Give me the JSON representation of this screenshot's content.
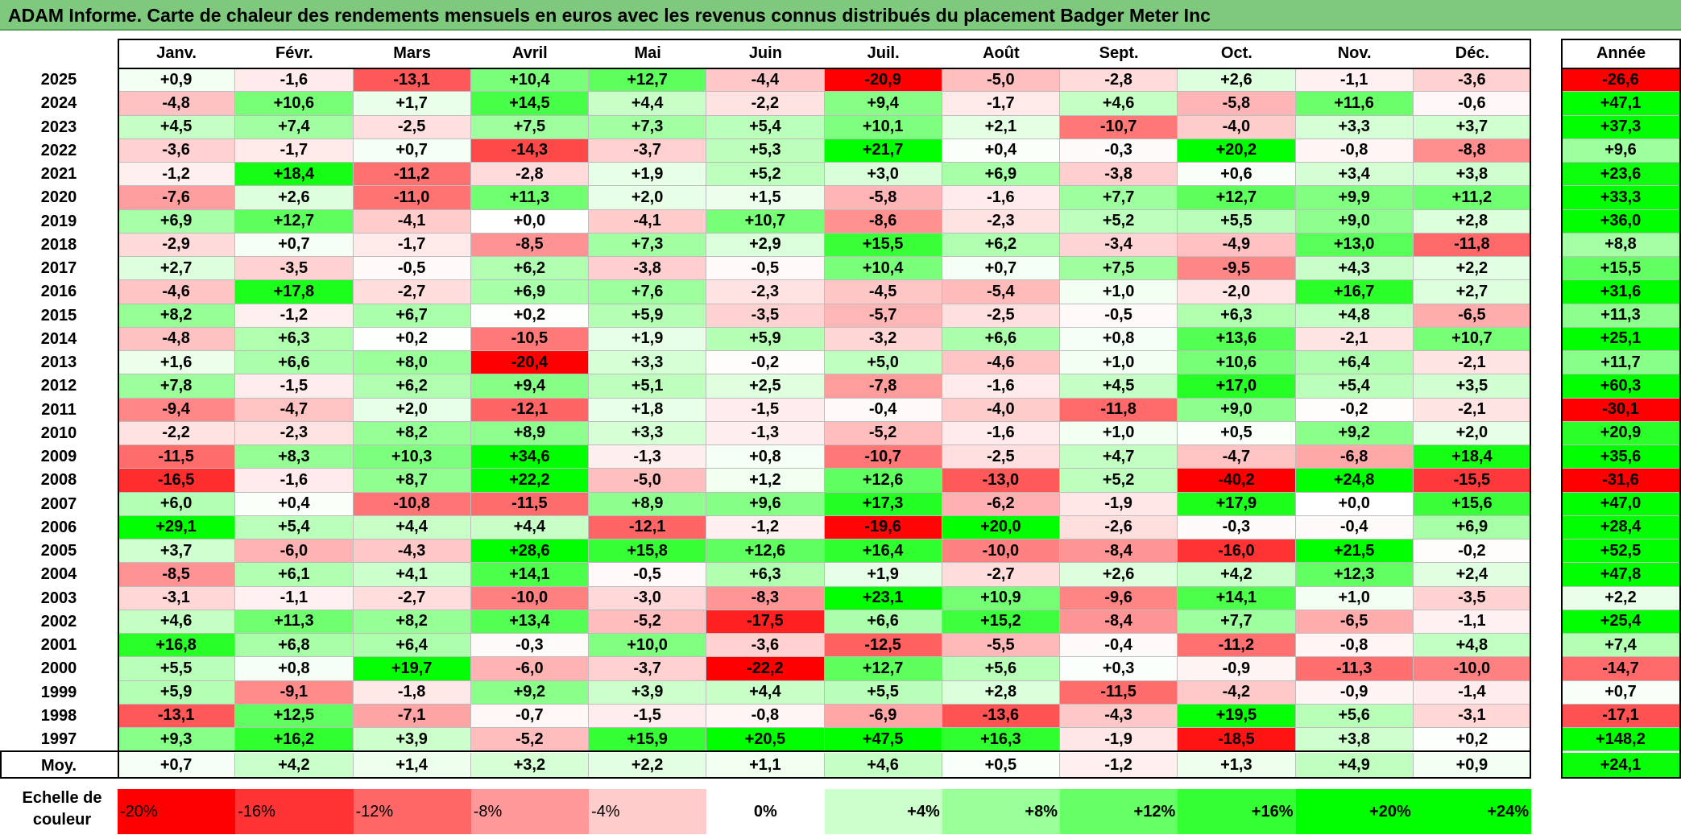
{
  "title": "ADAM Informe. Carte de chaleur des rendements mensuels en euros avec les revenus connus distribués du placement Badger Meter Inc",
  "chart_data": {
    "type": "heatmap",
    "title": "ADAM Informe. Carte de chaleur des rendements mensuels en euros avec les revenus connus distribués du placement Badger Meter Inc",
    "columns": [
      "Janv.",
      "Févr.",
      "Mars",
      "Avril",
      "Mai",
      "Juin",
      "Juil.",
      "Août",
      "Sept.",
      "Oct.",
      "Nov.",
      "Déc."
    ],
    "year_column_label": "Année",
    "rows": [
      {
        "year": "2025",
        "values": [
          "+0,9",
          "-1,6",
          "-13,1",
          "+10,4",
          "+12,7",
          "-4,4",
          "-20,9",
          "-5,0",
          "-2,8",
          "+2,6",
          "-1,1",
          "-3,6"
        ],
        "annual": "-26,6"
      },
      {
        "year": "2024",
        "values": [
          "-4,8",
          "+10,6",
          "+1,7",
          "+14,5",
          "+4,4",
          "-2,2",
          "+9,4",
          "-1,7",
          "+4,6",
          "-5,8",
          "+11,6",
          "-0,6"
        ],
        "annual": "+47,1"
      },
      {
        "year": "2023",
        "values": [
          "+4,5",
          "+7,4",
          "-2,5",
          "+7,5",
          "+7,3",
          "+5,4",
          "+10,1",
          "+2,1",
          "-10,7",
          "-4,0",
          "+3,3",
          "+3,7"
        ],
        "annual": "+37,3"
      },
      {
        "year": "2022",
        "values": [
          "-3,6",
          "-1,7",
          "+0,7",
          "-14,3",
          "-3,7",
          "+5,3",
          "+21,7",
          "+0,4",
          "-0,3",
          "+20,2",
          "-0,8",
          "-8,8"
        ],
        "annual": "+9,6"
      },
      {
        "year": "2021",
        "values": [
          "-1,2",
          "+18,4",
          "-11,2",
          "-2,8",
          "+1,9",
          "+5,2",
          "+3,0",
          "+6,9",
          "-3,8",
          "+0,6",
          "+3,4",
          "+3,8"
        ],
        "annual": "+23,6"
      },
      {
        "year": "2020",
        "values": [
          "-7,6",
          "+2,6",
          "-11,0",
          "+11,3",
          "+2,0",
          "+1,5",
          "-5,8",
          "-1,6",
          "+7,7",
          "+12,7",
          "+9,9",
          "+11,2"
        ],
        "annual": "+33,3"
      },
      {
        "year": "2019",
        "values": [
          "+6,9",
          "+12,7",
          "-4,1",
          "+0,0",
          "-4,1",
          "+10,7",
          "-8,6",
          "-2,3",
          "+5,2",
          "+5,5",
          "+9,0",
          "+2,8"
        ],
        "annual": "+36,0"
      },
      {
        "year": "2018",
        "values": [
          "-2,9",
          "+0,7",
          "-1,7",
          "-8,5",
          "+7,3",
          "+2,9",
          "+15,5",
          "+6,2",
          "-3,4",
          "-4,9",
          "+13,0",
          "-11,8"
        ],
        "annual": "+8,8"
      },
      {
        "year": "2017",
        "values": [
          "+2,7",
          "-3,5",
          "-0,5",
          "+6,2",
          "-3,8",
          "-0,5",
          "+10,4",
          "+0,7",
          "+7,5",
          "-9,5",
          "+4,3",
          "+2,2"
        ],
        "annual": "+15,5"
      },
      {
        "year": "2016",
        "values": [
          "-4,6",
          "+17,8",
          "-2,7",
          "+6,9",
          "+7,6",
          "-2,3",
          "-4,5",
          "-5,4",
          "+1,0",
          "-2,0",
          "+16,7",
          "+2,7"
        ],
        "annual": "+31,6"
      },
      {
        "year": "2015",
        "values": [
          "+8,2",
          "-1,2",
          "+6,7",
          "+0,2",
          "+5,9",
          "-3,5",
          "-5,7",
          "-2,5",
          "-0,5",
          "+6,3",
          "+4,8",
          "-6,5"
        ],
        "annual": "+11,3"
      },
      {
        "year": "2014",
        "values": [
          "-4,8",
          "+6,3",
          "+0,2",
          "-10,5",
          "+1,9",
          "+5,9",
          "-3,2",
          "+6,6",
          "+0,8",
          "+13,6",
          "-2,1",
          "+10,7"
        ],
        "annual": "+25,1"
      },
      {
        "year": "2013",
        "values": [
          "+1,6",
          "+6,6",
          "+8,0",
          "-20,4",
          "+3,3",
          "-0,2",
          "+5,0",
          "-4,6",
          "+1,0",
          "+10,6",
          "+6,4",
          "-2,1"
        ],
        "annual": "+11,7"
      },
      {
        "year": "2012",
        "values": [
          "+7,8",
          "-1,5",
          "+6,2",
          "+9,4",
          "+5,1",
          "+2,5",
          "-7,8",
          "-1,6",
          "+4,5",
          "+17,0",
          "+5,4",
          "+3,5"
        ],
        "annual": "+60,3"
      },
      {
        "year": "2011",
        "values": [
          "-9,4",
          "-4,7",
          "+2,0",
          "-12,1",
          "+1,8",
          "-1,5",
          "-0,4",
          "-4,0",
          "-11,8",
          "+9,0",
          "-0,2",
          "-2,1"
        ],
        "annual": "-30,1"
      },
      {
        "year": "2010",
        "values": [
          "-2,2",
          "-2,3",
          "+8,2",
          "+8,9",
          "+3,3",
          "-1,3",
          "-5,2",
          "-1,6",
          "+1,0",
          "+0,5",
          "+9,2",
          "+2,0"
        ],
        "annual": "+20,9"
      },
      {
        "year": "2009",
        "values": [
          "-11,5",
          "+8,3",
          "+10,3",
          "+34,6",
          "-1,3",
          "+0,8",
          "-10,7",
          "-2,5",
          "+4,7",
          "-4,7",
          "-6,8",
          "+18,4"
        ],
        "annual": "+35,6"
      },
      {
        "year": "2008",
        "values": [
          "-16,5",
          "-1,6",
          "+8,7",
          "+22,2",
          "-5,0",
          "+1,2",
          "+12,6",
          "-13,0",
          "+5,2",
          "-40,2",
          "+24,8",
          "-15,5"
        ],
        "annual": "-31,6"
      },
      {
        "year": "2007",
        "values": [
          "+6,0",
          "+0,4",
          "-10,8",
          "-11,5",
          "+8,9",
          "+9,6",
          "+17,3",
          "-6,2",
          "-1,9",
          "+17,9",
          "+0,0",
          "+15,6"
        ],
        "annual": "+47,0"
      },
      {
        "year": "2006",
        "values": [
          "+29,1",
          "+5,4",
          "+4,4",
          "+4,4",
          "-12,1",
          "-1,2",
          "-19,6",
          "+20,0",
          "-2,6",
          "-0,3",
          "-0,4",
          "+6,9"
        ],
        "annual": "+28,4"
      },
      {
        "year": "2005",
        "values": [
          "+3,7",
          "-6,0",
          "-4,3",
          "+28,6",
          "+15,8",
          "+12,6",
          "+16,4",
          "-10,0",
          "-8,4",
          "-16,0",
          "+21,5",
          "-0,2"
        ],
        "annual": "+52,5"
      },
      {
        "year": "2004",
        "values": [
          "-8,5",
          "+6,1",
          "+4,1",
          "+14,1",
          "-0,5",
          "+6,3",
          "+1,9",
          "-2,7",
          "+2,6",
          "+4,2",
          "+12,3",
          "+2,4"
        ],
        "annual": "+47,8"
      },
      {
        "year": "2003",
        "values": [
          "-3,1",
          "-1,1",
          "-2,7",
          "-10,0",
          "-3,0",
          "-8,3",
          "+23,1",
          "+10,9",
          "-9,6",
          "+14,1",
          "+1,0",
          "-3,5"
        ],
        "annual": "+2,2"
      },
      {
        "year": "2002",
        "values": [
          "+4,6",
          "+11,3",
          "+8,2",
          "+13,4",
          "-5,2",
          "-17,5",
          "+6,6",
          "+15,2",
          "-8,4",
          "+7,7",
          "-6,5",
          "-1,1"
        ],
        "annual": "+25,4"
      },
      {
        "year": "2001",
        "values": [
          "+16,8",
          "+6,8",
          "+6,4",
          "-0,3",
          "+10,0",
          "-3,6",
          "-12,5",
          "-5,5",
          "-0,4",
          "-11,2",
          "-0,8",
          "+4,8"
        ],
        "annual": "+7,4"
      },
      {
        "year": "2000",
        "values": [
          "+5,5",
          "+0,8",
          "+19,7",
          "-6,0",
          "-3,7",
          "-22,2",
          "+12,7",
          "+5,6",
          "+0,3",
          "-0,9",
          "-11,3",
          "-10,0"
        ],
        "annual": "-14,7"
      },
      {
        "year": "1999",
        "values": [
          "+5,9",
          "-9,1",
          "-1,8",
          "+9,2",
          "+3,9",
          "+4,4",
          "+5,5",
          "+2,8",
          "-11,5",
          "-4,2",
          "-0,9",
          "-1,4"
        ],
        "annual": "+0,7"
      },
      {
        "year": "1998",
        "values": [
          "-13,1",
          "+12,5",
          "-7,1",
          "-0,7",
          "-1,5",
          "-0,8",
          "-6,9",
          "-13,6",
          "-4,3",
          "+19,5",
          "+5,6",
          "-3,1"
        ],
        "annual": "-17,1"
      },
      {
        "year": "1997",
        "values": [
          "+9,3",
          "+16,2",
          "+3,9",
          "-5,2",
          "+15,9",
          "+20,5",
          "+47,5",
          "+16,3",
          "-1,9",
          "-18,5",
          "+3,8",
          "+0,2"
        ],
        "annual": "+148,2"
      }
    ],
    "average": {
      "label": "Moy.",
      "values": [
        "+0,7",
        "+4,2",
        "+1,4",
        "+3,2",
        "+2,2",
        "+1,1",
        "+4,6",
        "+0,5",
        "-1,2",
        "+1,3",
        "+4,9",
        "+0,9"
      ],
      "annual": "+24,1"
    },
    "color_scale": {
      "label": "Echelle de couleur",
      "stops": [
        "-20%",
        "-16%",
        "-12%",
        "-8%",
        "-4%",
        "0%",
        "+4%",
        "+8%",
        "+12%",
        "+16%",
        "+20%",
        "+24%"
      ],
      "negative_color": "#ff0000",
      "positive_color": "#00ff00",
      "neutral_color": "#ffffff"
    }
  }
}
